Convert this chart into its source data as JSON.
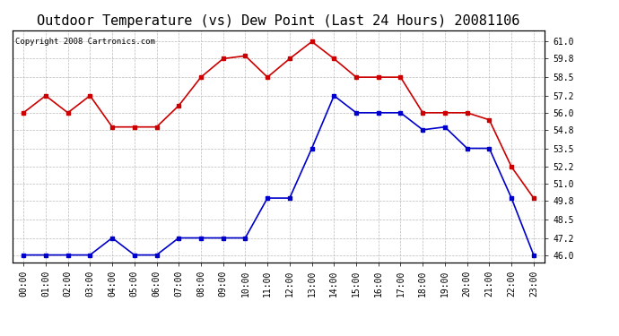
{
  "title": "Outdoor Temperature (vs) Dew Point (Last 24 Hours) 20081106",
  "copyright": "Copyright 2008 Cartronics.com",
  "hours": [
    "00:00",
    "01:00",
    "02:00",
    "03:00",
    "04:00",
    "05:00",
    "06:00",
    "07:00",
    "08:00",
    "09:00",
    "10:00",
    "11:00",
    "12:00",
    "13:00",
    "14:00",
    "15:00",
    "16:00",
    "17:00",
    "18:00",
    "19:00",
    "20:00",
    "21:00",
    "22:00",
    "23:00"
  ],
  "temp": [
    56.0,
    57.2,
    56.0,
    57.2,
    55.0,
    55.0,
    55.0,
    56.5,
    58.5,
    59.8,
    60.0,
    58.5,
    59.8,
    61.0,
    59.8,
    58.5,
    58.5,
    58.5,
    56.0,
    56.0,
    56.0,
    55.5,
    52.2,
    50.0
  ],
  "dew": [
    46.0,
    46.0,
    46.0,
    46.0,
    47.2,
    46.0,
    46.0,
    47.2,
    47.2,
    47.2,
    47.2,
    50.0,
    50.0,
    53.5,
    57.2,
    56.0,
    56.0,
    56.0,
    54.8,
    55.0,
    53.5,
    53.5,
    50.0,
    46.0
  ],
  "temp_color": "#cc0000",
  "dew_color": "#0000cc",
  "bg_color": "#ffffff",
  "grid_color": "#bbbbbb",
  "ylim": [
    45.5,
    61.8
  ],
  "yticks": [
    46.0,
    47.2,
    48.5,
    49.8,
    51.0,
    52.2,
    53.5,
    54.8,
    56.0,
    57.2,
    58.5,
    59.8,
    61.0
  ],
  "title_fontsize": 11,
  "tick_fontsize": 7,
  "copyright_fontsize": 6.5,
  "markersize": 2.5,
  "linewidth": 1.2
}
